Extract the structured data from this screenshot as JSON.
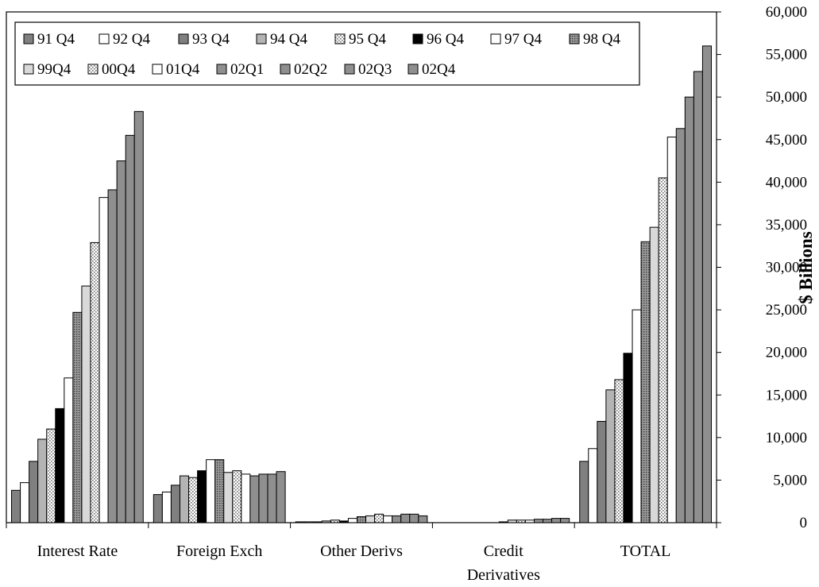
{
  "chart_data": {
    "type": "bar",
    "title": "",
    "xlabel": "",
    "ylabel": "$ Billions",
    "ylim": [
      0,
      60000
    ],
    "yticks": [
      "0",
      "5,000",
      "10,000",
      "15,000",
      "20,000",
      "25,000",
      "30,000",
      "35,000",
      "40,000",
      "45,000",
      "50,000",
      "55,000",
      "60,000"
    ],
    "grid": false,
    "y_axis_side": "right",
    "legend_placement": "top-left",
    "categories": [
      "Interest Rate",
      "Foreign Exch",
      "Other Derivs",
      "Credit Derivatives",
      "TOTAL"
    ],
    "category_display": [
      [
        "Interest Rate"
      ],
      [
        "Foreign Exch"
      ],
      [
        "Other Derivs"
      ],
      [
        "Credit",
        "Derivatives"
      ],
      [
        "TOTAL"
      ]
    ],
    "series": [
      {
        "name": "91 Q4",
        "fill": "#808080",
        "pattern": "solid",
        "values": [
          3800,
          3300,
          100,
          0,
          7200
        ]
      },
      {
        "name": "92 Q4",
        "fill": "#ffffff",
        "pattern": "solid",
        "values": [
          4700,
          3600,
          100,
          0,
          8700
        ]
      },
      {
        "name": "93 Q4",
        "fill": "#808080",
        "pattern": "solid",
        "values": [
          7200,
          4400,
          100,
          0,
          11900
        ]
      },
      {
        "name": "94 Q4",
        "fill": "#b4b4b4",
        "pattern": "solid",
        "values": [
          9800,
          5500,
          200,
          0,
          15600
        ]
      },
      {
        "name": "95 Q4",
        "fill": "#c0c0c0",
        "pattern": "dots",
        "values": [
          11000,
          5300,
          300,
          0,
          16800
        ]
      },
      {
        "name": "96 Q4",
        "fill": "#000000",
        "pattern": "solid",
        "values": [
          13400,
          6100,
          200,
          0,
          19900
        ]
      },
      {
        "name": "97 Q4",
        "fill": "#ffffff",
        "pattern": "solid",
        "values": [
          17000,
          7400,
          500,
          0,
          25000
        ]
      },
      {
        "name": "98 Q4",
        "fill": "#808080",
        "pattern": "grid",
        "values": [
          24700,
          7400,
          700,
          100,
          33000
        ]
      },
      {
        "name": "99Q4",
        "fill": "#d9d9d9",
        "pattern": "solid",
        "values": [
          27800,
          5900,
          800,
          300,
          34700
        ]
      },
      {
        "name": "00Q4",
        "fill": "#d0d0d0",
        "pattern": "dots",
        "values": [
          32900,
          6100,
          1000,
          300,
          40500
        ]
      },
      {
        "name": "01Q4",
        "fill": "#ffffff",
        "pattern": "solid",
        "values": [
          38200,
          5700,
          800,
          300,
          45300
        ]
      },
      {
        "name": "02Q1",
        "fill": "#8f8f8f",
        "pattern": "solid",
        "values": [
          39100,
          5500,
          800,
          400,
          46300
        ]
      },
      {
        "name": "02Q2",
        "fill": "#8f8f8f",
        "pattern": "solid",
        "values": [
          42500,
          5700,
          1000,
          400,
          50000
        ]
      },
      {
        "name": "02Q3",
        "fill": "#8f8f8f",
        "pattern": "solid",
        "values": [
          45500,
          5700,
          1000,
          500,
          53000
        ]
      },
      {
        "name": "02Q4",
        "fill": "#8f8f8f",
        "pattern": "solid",
        "values": [
          48300,
          6000,
          800,
          500,
          56000
        ]
      }
    ]
  }
}
